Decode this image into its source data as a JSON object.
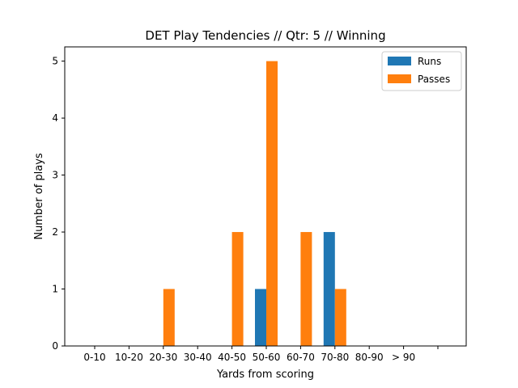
{
  "chart_data": {
    "type": "bar",
    "title": "DET Play Tendencies // Qtr: 5 // Winning",
    "xlabel": "Yards from scoring",
    "ylabel": "Number of plays",
    "categories": [
      "0-10",
      "10-20",
      "20-30",
      "30-40",
      "40-50",
      "50-60",
      "60-70",
      "70-80",
      "80-90",
      "> 90"
    ],
    "extra_tick_count": 1,
    "series": [
      {
        "name": "Runs",
        "color": "#1f77b4",
        "values": [
          0,
          0,
          0,
          0,
          0,
          1,
          0,
          2,
          0,
          0
        ]
      },
      {
        "name": "Passes",
        "color": "#ff7f0e",
        "values": [
          0,
          0,
          1,
          0,
          2,
          5,
          2,
          1,
          0,
          0
        ]
      }
    ],
    "yticks": [
      0,
      1,
      2,
      3,
      4,
      5
    ],
    "ylim": [
      0,
      5.25
    ],
    "grid": false,
    "legend": "top-right"
  }
}
